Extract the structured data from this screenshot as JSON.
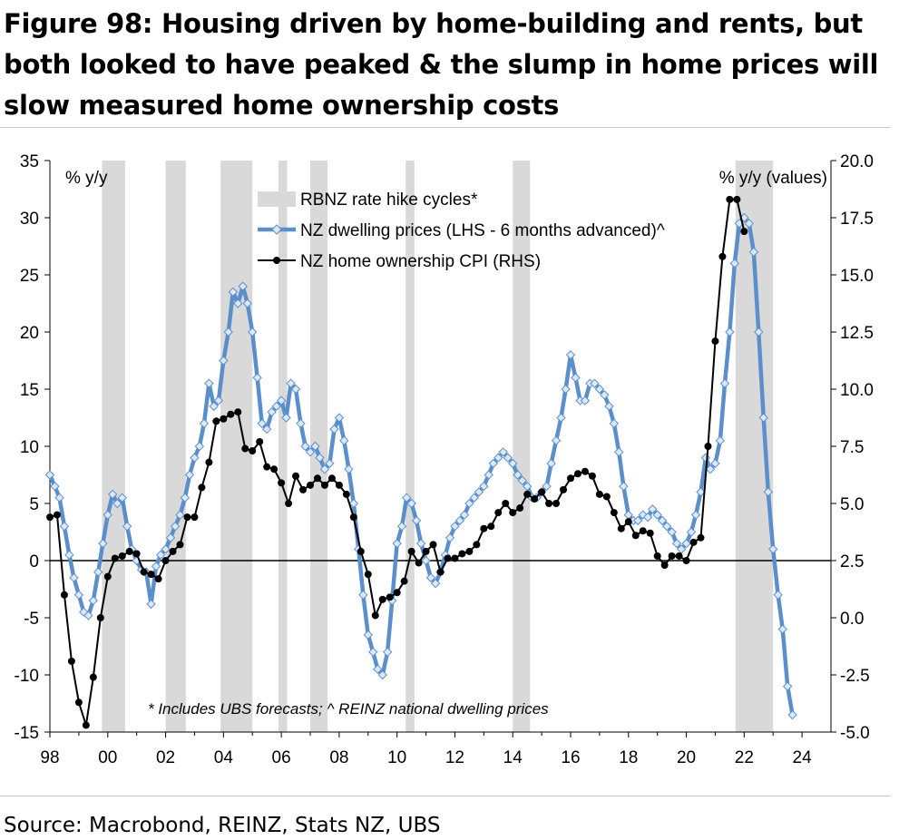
{
  "figure_title": "Figure 98: Housing driven by home-building and rents, but both looked to have peaked & the slump in home prices will slow measured home ownership costs",
  "source": "Source: Macrobond, REINZ, Stats NZ, UBS",
  "chart_data": {
    "type": "line",
    "title": "",
    "left_axis": {
      "label": "% y/y",
      "range": [
        -15,
        35
      ],
      "ticks": [
        "-15",
        "-10",
        "-5",
        "0",
        "5",
        "10",
        "15",
        "20",
        "25",
        "30",
        "35"
      ]
    },
    "right_axis": {
      "label": "% y/y (values)",
      "range": [
        -5.0,
        20.0
      ],
      "ticks": [
        "-5.0",
        "-2.5",
        "0.0",
        "2.5",
        "5.0",
        "7.5",
        "10.0",
        "12.5",
        "15.0",
        "17.5",
        "20.0"
      ]
    },
    "x_axis": {
      "range": [
        1998,
        2025
      ],
      "ticks": [
        "98",
        "00",
        "02",
        "04",
        "06",
        "08",
        "10",
        "12",
        "14",
        "16",
        "18",
        "20",
        "22",
        "24"
      ]
    },
    "legend": {
      "position": "top-center",
      "entries": [
        "RBNZ rate hike cycles*",
        "NZ dwelling prices (LHS - 6 months advanced)^",
        "NZ home ownership CPI (RHS)"
      ]
    },
    "note": "* Includes UBS forecasts; ^ REINZ national dwelling prices",
    "grid": false,
    "colors": {
      "shade": "#d9d9d9",
      "dwelling": "#5b8fcc",
      "dwelling_marker": "#dce8f6",
      "cpi": "#000000"
    },
    "rate_hike_cycles": [
      [
        1999.8,
        2000.6
      ],
      [
        2002.0,
        2002.7
      ],
      [
        2003.9,
        2005.0
      ],
      [
        2005.9,
        2006.2
      ],
      [
        2007.0,
        2007.6
      ],
      [
        2010.3,
        2010.6
      ],
      [
        2014.0,
        2014.6
      ],
      [
        2021.7,
        2023.0
      ]
    ],
    "series": [
      {
        "name": "NZ dwelling prices (LHS - 6 months advanced)^",
        "axis": "left",
        "points": [
          [
            1998.0,
            7.5
          ],
          [
            1998.17,
            6.5
          ],
          [
            1998.33,
            5.5
          ],
          [
            1998.5,
            3.0
          ],
          [
            1998.67,
            0.5
          ],
          [
            1998.83,
            -1.5
          ],
          [
            1999.0,
            -3.0
          ],
          [
            1999.17,
            -4.5
          ],
          [
            1999.33,
            -4.8
          ],
          [
            1999.5,
            -3.5
          ],
          [
            1999.67,
            -1.0
          ],
          [
            1999.83,
            1.5
          ],
          [
            2000.0,
            4.0
          ],
          [
            2000.17,
            5.8
          ],
          [
            2000.33,
            5.0
          ],
          [
            2000.5,
            5.5
          ],
          [
            2000.67,
            3.0
          ],
          [
            2000.83,
            1.0
          ],
          [
            2001.0,
            0.0
          ],
          [
            2001.17,
            -0.8
          ],
          [
            2001.33,
            -1.0
          ],
          [
            2001.5,
            -3.8
          ],
          [
            2001.67,
            -0.5
          ],
          [
            2001.83,
            0.5
          ],
          [
            2002.0,
            1.0
          ],
          [
            2002.17,
            2.0
          ],
          [
            2002.33,
            3.0
          ],
          [
            2002.5,
            4.0
          ],
          [
            2002.67,
            5.5
          ],
          [
            2002.83,
            7.5
          ],
          [
            2003.0,
            9.0
          ],
          [
            2003.17,
            10.0
          ],
          [
            2003.33,
            12.0
          ],
          [
            2003.5,
            15.5
          ],
          [
            2003.67,
            13.5
          ],
          [
            2003.83,
            14.0
          ],
          [
            2004.0,
            17.5
          ],
          [
            2004.17,
            20.0
          ],
          [
            2004.33,
            23.5
          ],
          [
            2004.5,
            22.5
          ],
          [
            2004.67,
            24.0
          ],
          [
            2004.83,
            22.5
          ],
          [
            2005.0,
            20.0
          ],
          [
            2005.17,
            16.0
          ],
          [
            2005.33,
            12.0
          ],
          [
            2005.5,
            11.5
          ],
          [
            2005.67,
            13.0
          ],
          [
            2005.83,
            13.5
          ],
          [
            2006.0,
            14.0
          ],
          [
            2006.17,
            12.5
          ],
          [
            2006.33,
            15.5
          ],
          [
            2006.5,
            15.0
          ],
          [
            2006.67,
            12.0
          ],
          [
            2006.83,
            10.0
          ],
          [
            2007.0,
            9.5
          ],
          [
            2007.17,
            10.0
          ],
          [
            2007.33,
            9.0
          ],
          [
            2007.5,
            8.0
          ],
          [
            2007.67,
            8.5
          ],
          [
            2007.83,
            11.5
          ],
          [
            2008.0,
            12.5
          ],
          [
            2008.17,
            10.5
          ],
          [
            2008.33,
            8.0
          ],
          [
            2008.5,
            5.0
          ],
          [
            2008.67,
            1.0
          ],
          [
            2008.83,
            -3.0
          ],
          [
            2009.0,
            -6.5
          ],
          [
            2009.17,
            -8.0
          ],
          [
            2009.33,
            -9.5
          ],
          [
            2009.5,
            -10.0
          ],
          [
            2009.67,
            -8.0
          ],
          [
            2009.83,
            -3.5
          ],
          [
            2010.0,
            1.5
          ],
          [
            2010.17,
            3.0
          ],
          [
            2010.33,
            5.5
          ],
          [
            2010.5,
            5.0
          ],
          [
            2010.67,
            3.5
          ],
          [
            2010.83,
            1.5
          ],
          [
            2011.0,
            0.0
          ],
          [
            2011.17,
            -1.5
          ],
          [
            2011.33,
            -2.0
          ],
          [
            2011.5,
            -1.0
          ],
          [
            2011.67,
            0.5
          ],
          [
            2011.83,
            2.0
          ],
          [
            2012.0,
            3.0
          ],
          [
            2012.17,
            3.5
          ],
          [
            2012.33,
            4.0
          ],
          [
            2012.5,
            5.0
          ],
          [
            2012.67,
            5.5
          ],
          [
            2012.83,
            6.0
          ],
          [
            2013.0,
            6.5
          ],
          [
            2013.17,
            7.5
          ],
          [
            2013.33,
            8.5
          ],
          [
            2013.5,
            9.0
          ],
          [
            2013.67,
            9.5
          ],
          [
            2013.83,
            9.0
          ],
          [
            2014.0,
            8.5
          ],
          [
            2014.17,
            7.5
          ],
          [
            2014.33,
            7.0
          ],
          [
            2014.5,
            6.5
          ],
          [
            2014.67,
            5.5
          ],
          [
            2014.83,
            5.5
          ],
          [
            2015.0,
            6.0
          ],
          [
            2015.17,
            6.5
          ],
          [
            2015.33,
            8.5
          ],
          [
            2015.5,
            10.5
          ],
          [
            2015.67,
            12.5
          ],
          [
            2015.83,
            15.0
          ],
          [
            2016.0,
            18.0
          ],
          [
            2016.17,
            16.0
          ],
          [
            2016.33,
            14.0
          ],
          [
            2016.5,
            14.0
          ],
          [
            2016.67,
            15.5
          ],
          [
            2016.83,
            15.5
          ],
          [
            2017.0,
            15.0
          ],
          [
            2017.17,
            14.5
          ],
          [
            2017.33,
            13.5
          ],
          [
            2017.5,
            12.0
          ],
          [
            2017.67,
            9.5
          ],
          [
            2017.83,
            6.5
          ],
          [
            2018.0,
            4.0
          ],
          [
            2018.17,
            3.5
          ],
          [
            2018.33,
            3.5
          ],
          [
            2018.5,
            4.0
          ],
          [
            2018.67,
            3.8
          ],
          [
            2018.83,
            4.5
          ],
          [
            2019.0,
            4.0
          ],
          [
            2019.17,
            3.5
          ],
          [
            2019.33,
            3.0
          ],
          [
            2019.5,
            2.5
          ],
          [
            2019.67,
            1.5
          ],
          [
            2019.83,
            1.0
          ],
          [
            2020.0,
            1.5
          ],
          [
            2020.17,
            2.5
          ],
          [
            2020.33,
            4.0
          ],
          [
            2020.5,
            6.0
          ],
          [
            2020.67,
            9.0
          ],
          [
            2020.83,
            8.0
          ],
          [
            2021.0,
            8.5
          ],
          [
            2021.17,
            10.5
          ],
          [
            2021.33,
            15.5
          ],
          [
            2021.5,
            20.0
          ],
          [
            2021.67,
            26.0
          ],
          [
            2021.83,
            29.5
          ],
          [
            2022.0,
            30.0
          ],
          [
            2022.17,
            29.5
          ],
          [
            2022.33,
            27.0
          ],
          [
            2022.5,
            20.0
          ],
          [
            2022.67,
            12.5
          ],
          [
            2022.83,
            6.0
          ],
          [
            2023.0,
            1.0
          ],
          [
            2023.17,
            -3.0
          ],
          [
            2023.33,
            -6.0
          ],
          [
            2023.5,
            -11.0
          ],
          [
            2023.67,
            -13.5
          ]
        ]
      },
      {
        "name": "NZ home ownership CPI (RHS)",
        "axis": "right",
        "points": [
          [
            1998.0,
            4.4
          ],
          [
            1998.25,
            4.5
          ],
          [
            1998.5,
            1.0
          ],
          [
            1998.75,
            -1.9
          ],
          [
            1999.0,
            -3.7
          ],
          [
            1999.25,
            -4.7
          ],
          [
            1999.5,
            -2.6
          ],
          [
            1999.75,
            0.0
          ],
          [
            2000.0,
            1.8
          ],
          [
            2000.25,
            2.6
          ],
          [
            2000.5,
            2.7
          ],
          [
            2000.75,
            2.9
          ],
          [
            2001.0,
            2.8
          ],
          [
            2001.25,
            2.0
          ],
          [
            2001.5,
            1.9
          ],
          [
            2001.75,
            1.7
          ],
          [
            2002.0,
            2.5
          ],
          [
            2002.25,
            2.9
          ],
          [
            2002.5,
            3.2
          ],
          [
            2002.75,
            4.4
          ],
          [
            2003.0,
            4.4
          ],
          [
            2003.25,
            5.7
          ],
          [
            2003.5,
            6.8
          ],
          [
            2003.75,
            8.6
          ],
          [
            2004.0,
            8.7
          ],
          [
            2004.25,
            8.9
          ],
          [
            2004.5,
            9.0
          ],
          [
            2004.75,
            7.4
          ],
          [
            2005.0,
            7.3
          ],
          [
            2005.25,
            7.7
          ],
          [
            2005.5,
            6.6
          ],
          [
            2005.75,
            6.5
          ],
          [
            2006.0,
            5.9
          ],
          [
            2006.25,
            5.0
          ],
          [
            2006.5,
            6.2
          ],
          [
            2006.75,
            5.6
          ],
          [
            2007.0,
            5.8
          ],
          [
            2007.25,
            6.1
          ],
          [
            2007.5,
            5.8
          ],
          [
            2007.75,
            6.1
          ],
          [
            2008.0,
            5.8
          ],
          [
            2008.25,
            5.4
          ],
          [
            2008.5,
            4.4
          ],
          [
            2008.75,
            2.9
          ],
          [
            2009.0,
            1.9
          ],
          [
            2009.25,
            0.1
          ],
          [
            2009.5,
            0.8
          ],
          [
            2009.75,
            0.9
          ],
          [
            2010.0,
            1.1
          ],
          [
            2010.25,
            1.6
          ],
          [
            2010.5,
            2.9
          ],
          [
            2010.75,
            2.4
          ],
          [
            2011.0,
            2.9
          ],
          [
            2011.25,
            3.2
          ],
          [
            2011.5,
            2.0
          ],
          [
            2011.75,
            2.6
          ],
          [
            2012.0,
            2.6
          ],
          [
            2012.25,
            2.8
          ],
          [
            2012.5,
            2.9
          ],
          [
            2012.75,
            3.2
          ],
          [
            2013.0,
            3.9
          ],
          [
            2013.25,
            4.0
          ],
          [
            2013.5,
            4.6
          ],
          [
            2013.75,
            5.0
          ],
          [
            2014.0,
            4.6
          ],
          [
            2014.25,
            4.8
          ],
          [
            2014.5,
            5.4
          ],
          [
            2014.75,
            5.2
          ],
          [
            2015.0,
            5.5
          ],
          [
            2015.25,
            5.0
          ],
          [
            2015.5,
            5.0
          ],
          [
            2015.75,
            5.6
          ],
          [
            2016.0,
            6.1
          ],
          [
            2016.25,
            6.3
          ],
          [
            2016.5,
            6.4
          ],
          [
            2016.75,
            6.2
          ],
          [
            2017.0,
            5.4
          ],
          [
            2017.25,
            5.3
          ],
          [
            2017.5,
            4.6
          ],
          [
            2017.75,
            3.9
          ],
          [
            2018.0,
            4.2
          ],
          [
            2018.25,
            3.6
          ],
          [
            2018.5,
            3.8
          ],
          [
            2018.75,
            3.7
          ],
          [
            2019.0,
            2.7
          ],
          [
            2019.25,
            2.3
          ],
          [
            2019.5,
            2.7
          ],
          [
            2019.75,
            2.7
          ],
          [
            2020.0,
            2.5
          ],
          [
            2020.25,
            3.3
          ],
          [
            2020.5,
            3.5
          ],
          [
            2020.75,
            7.5
          ],
          [
            2021.0,
            12.1
          ],
          [
            2021.25,
            15.8
          ],
          [
            2021.5,
            18.3
          ],
          [
            2021.75,
            18.3
          ],
          [
            2022.0,
            16.9
          ]
        ]
      }
    ]
  }
}
